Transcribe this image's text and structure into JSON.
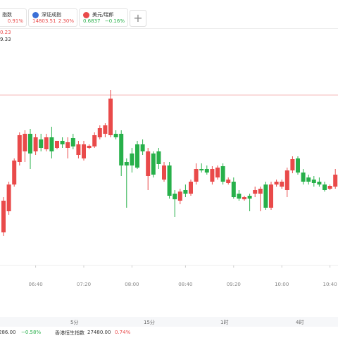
{
  "tabs": [
    {
      "name": "指数",
      "change": "0.91%"
    },
    {
      "name": "深证成指",
      "price": "14803.51",
      "change": "2.30%"
    },
    {
      "name": "美元/瑞郎",
      "price": "0.6837",
      "change": "−0.16%"
    }
  ],
  "add_button": "+",
  "periods": [
    "5分",
    "15分",
    "1时",
    "4时"
  ],
  "ticker": [
    {
      "price": "286.00",
      "change": "−0.58%"
    },
    {
      "name": "香港恒生指数",
      "price": "27480.00",
      "change": "0.74%"
    }
  ],
  "chart_data": {
    "type": "candlestick",
    "side_labels": [
      "0.23",
      "9.33"
    ],
    "up_color": "#e94a4a",
    "down_color": "#27b04a",
    "ylim": [
      0,
      400
    ],
    "price_line": 305,
    "xticks": [
      {
        "value": 6,
        "label": "06:40"
      },
      {
        "value": 15,
        "label": "07:20"
      },
      {
        "value": 24,
        "label": "08:00"
      },
      {
        "value": 34,
        "label": "08:40"
      },
      {
        "value": 43,
        "label": "09:20"
      },
      {
        "value": 52,
        "label": "10:00"
      },
      {
        "value": 61,
        "label": "10:40"
      }
    ],
    "open": [
      110,
      140,
      178,
      210,
      225,
      250,
      225,
      242,
      228,
      245,
      230,
      240,
      230,
      244,
      220,
      215,
      230,
      232,
      245,
      250,
      248,
      250,
      250,
      210,
      222,
      235,
      235,
      190,
      222,
      225,
      185,
      205,
      165,
      155,
      170,
      165,
      182,
      200,
      200,
      182,
      188,
      204,
      180,
      182,
      165,
      157,
      162,
      165,
      165,
      178,
      145,
      178,
      175,
      170,
      198,
      215,
      195,
      188,
      185,
      182,
      178,
      172,
      175
    ],
    "high": [
      160,
      182,
      215,
      252,
      255,
      257,
      250,
      250,
      250,
      260,
      240,
      245,
      245,
      250,
      240,
      240,
      235,
      252,
      262,
      265,
      312,
      255,
      255,
      215,
      230,
      240,
      242,
      230,
      225,
      230,
      210,
      210,
      170,
      172,
      178,
      185,
      208,
      208,
      205,
      204,
      205,
      208,
      188,
      188,
      170,
      162,
      165,
      175,
      175,
      182,
      182,
      185,
      185,
      202,
      218,
      218,
      200,
      192,
      190,
      188,
      182,
      178,
      200
    ],
    "low": [
      105,
      135,
      175,
      205,
      210,
      200,
      220,
      225,
      225,
      215,
      228,
      230,
      215,
      228,
      215,
      212,
      228,
      230,
      242,
      245,
      245,
      242,
      190,
      145,
      195,
      200,
      220,
      170,
      188,
      200,
      182,
      158,
      132,
      150,
      160,
      162,
      178,
      195,
      192,
      178,
      185,
      178,
      178,
      158,
      155,
      155,
      140,
      160,
      140,
      142,
      142,
      175,
      172,
      160,
      194,
      192,
      178,
      178,
      175,
      175,
      168,
      170,
      172
    ],
    "close": [
      155,
      178,
      212,
      248,
      250,
      222,
      245,
      230,
      245,
      225,
      240,
      235,
      238,
      232,
      235,
      235,
      233,
      248,
      258,
      262,
      300,
      245,
      205,
      205,
      205,
      202,
      225,
      225,
      192,
      207,
      205,
      162,
      157,
      168,
      165,
      182,
      200,
      198,
      195,
      200,
      202,
      182,
      185,
      160,
      158,
      160,
      158,
      170,
      172,
      145,
      178,
      182,
      182,
      198,
      214,
      195,
      182,
      182,
      180,
      178,
      170,
      176,
      192
    ]
  }
}
